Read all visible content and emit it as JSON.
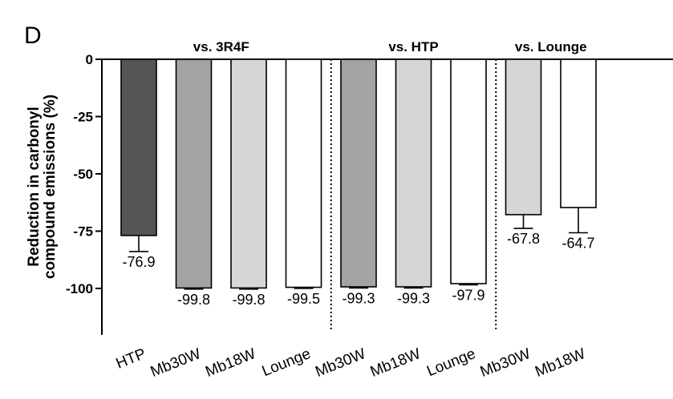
{
  "chart_data": {
    "type": "bar",
    "panel_label": "D",
    "ylabel_lines": [
      "Reduction in carbonyl",
      "compound emissions (%)"
    ],
    "ylim": [
      -120,
      0
    ],
    "yticks": [
      {
        "value": 0,
        "label": "0"
      },
      {
        "value": -25,
        "label": "-25"
      },
      {
        "value": -50,
        "label": "-50"
      },
      {
        "value": -75,
        "label": "-75"
      },
      {
        "value": -100,
        "label": "-100"
      }
    ],
    "groups": [
      {
        "title": "vs. 3R4F",
        "first": 0,
        "last": 3
      },
      {
        "title": "vs. HTP",
        "first": 4,
        "last": 6
      },
      {
        "title": "vs. Lounge",
        "first": 7,
        "last": 8
      }
    ],
    "bars": [
      {
        "category": "HTP",
        "value": -76.9,
        "error": 7.0,
        "label": "-76.9",
        "color": "#555555"
      },
      {
        "category": "Mb30W",
        "value": -99.8,
        "error": 0.5,
        "label": "-99.8",
        "color": "#a3a3a3"
      },
      {
        "category": "Mb18W",
        "value": -99.8,
        "error": 0.5,
        "label": "-99.8",
        "color": "#d6d6d6"
      },
      {
        "category": "Lounge",
        "value": -99.5,
        "error": 0.5,
        "label": "-99.5",
        "color": "#ffffff"
      },
      {
        "category": "Mb30W",
        "value": -99.3,
        "error": 0.5,
        "label": "-99.3",
        "color": "#a3a3a3"
      },
      {
        "category": "Mb18W",
        "value": -99.3,
        "error": 0.5,
        "label": "-99.3",
        "color": "#d6d6d6"
      },
      {
        "category": "Lounge",
        "value": -97.9,
        "error": 0.5,
        "label": "-97.9",
        "color": "#ffffff"
      },
      {
        "category": "Mb30W",
        "value": -67.8,
        "error": 6.0,
        "label": "-67.8",
        "color": "#d6d6d6"
      },
      {
        "category": "Mb18W",
        "value": -64.7,
        "error": 11.0,
        "label": "-64.7",
        "color": "#ffffff"
      }
    ]
  }
}
